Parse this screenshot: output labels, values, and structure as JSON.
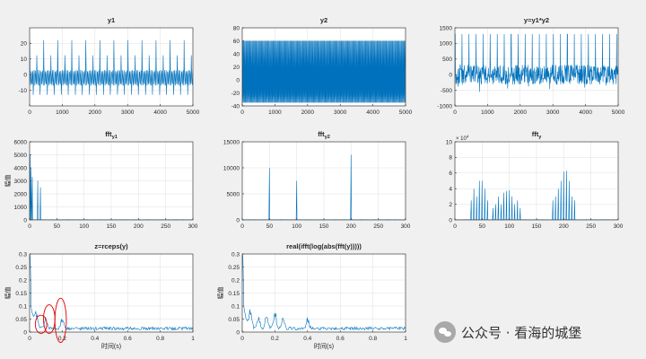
{
  "watermark": "公众号 · 看海的城堡",
  "colors": {
    "line": "#0072bd",
    "axes": "#262626",
    "grid": "#dfdfdf",
    "annotation": "#e00000"
  },
  "chart_data": [
    {
      "id": "y1",
      "type": "line",
      "title": "y1",
      "xlim": [
        0,
        5000
      ],
      "ylim": [
        -20,
        30
      ],
      "xticks": [
        0,
        1000,
        2000,
        3000,
        4000,
        5000
      ],
      "yticks": [
        -10,
        0,
        10,
        20
      ],
      "signal": {
        "period_x": 215,
        "peak_max": 22,
        "peak_min": -13,
        "secondary": 8
      }
    },
    {
      "id": "y2",
      "type": "line",
      "title": "y2",
      "xlim": [
        0,
        5000
      ],
      "ylim": [
        -40,
        80
      ],
      "xticks": [
        0,
        1000,
        2000,
        3000,
        4000,
        5000
      ],
      "yticks": [
        -40,
        -20,
        0,
        20,
        40,
        60,
        80
      ],
      "signal": {
        "upper": 60,
        "lower": -35,
        "dense_band": [
          -22,
          20
        ]
      }
    },
    {
      "id": "y",
      "type": "line",
      "title": "y=y1*y2",
      "xlim": [
        0,
        5000
      ],
      "ylim": [
        -1000,
        1500
      ],
      "xticks": [
        0,
        1000,
        2000,
        3000,
        4000,
        5000
      ],
      "yticks": [
        -1000,
        -500,
        0,
        500,
        1000,
        1500
      ],
      "signal": {
        "period_x": 215,
        "peak_max": 1300,
        "band": [
          -400,
          400
        ],
        "peak_min": -700
      }
    },
    {
      "id": "fft_y1",
      "type": "line",
      "title": "fft",
      "title_sub": "y1",
      "ylabel": "幅值",
      "xlim": [
        0,
        300
      ],
      "ylim": [
        0,
        6000
      ],
      "xticks": [
        0,
        50,
        100,
        150,
        200,
        250,
        300
      ],
      "yticks": [
        0,
        1000,
        2000,
        3000,
        4000,
        5000,
        6000
      ],
      "peaks": [
        [
          1,
          5000
        ],
        [
          3,
          4000
        ],
        [
          5,
          3300
        ],
        [
          15,
          3000
        ],
        [
          20,
          2500
        ]
      ]
    },
    {
      "id": "fft_y2",
      "type": "line",
      "title": "fft",
      "title_sub": "y2",
      "xlim": [
        0,
        300
      ],
      "ylim": [
        0,
        15000
      ],
      "xticks": [
        0,
        50,
        100,
        150,
        200,
        250,
        300
      ],
      "yticks": [
        0,
        5000,
        10000,
        15000
      ],
      "peaks": [
        [
          50,
          10000
        ],
        [
          100,
          7500
        ],
        [
          200,
          12500
        ]
      ]
    },
    {
      "id": "fft_y",
      "type": "line",
      "title": "fft",
      "title_sub": "y",
      "exponent_label": "× 10",
      "exponent_power": "4",
      "xlim": [
        0,
        300
      ],
      "ylim": [
        0,
        10
      ],
      "xticks": [
        0,
        50,
        100,
        150,
        200,
        250,
        300
      ],
      "yticks": [
        0,
        2,
        4,
        6,
        8,
        10
      ],
      "peaks": [
        [
          30,
          2.5
        ],
        [
          35,
          4
        ],
        [
          40,
          3
        ],
        [
          45,
          5
        ],
        [
          50,
          5
        ],
        [
          55,
          4
        ],
        [
          60,
          2.5
        ],
        [
          70,
          1.5
        ],
        [
          75,
          2
        ],
        [
          80,
          3
        ],
        [
          85,
          2
        ],
        [
          90,
          3.5
        ],
        [
          95,
          3.7
        ],
        [
          100,
          3.8
        ],
        [
          105,
          3
        ],
        [
          110,
          2
        ],
        [
          115,
          2.5
        ],
        [
          120,
          1.5
        ],
        [
          180,
          2.5
        ],
        [
          185,
          3
        ],
        [
          190,
          4
        ],
        [
          195,
          5
        ],
        [
          200,
          6.2
        ],
        [
          205,
          6.3
        ],
        [
          210,
          5
        ],
        [
          215,
          3
        ],
        [
          220,
          2.5
        ]
      ]
    },
    {
      "id": "rceps",
      "type": "line",
      "title": "z=rceps(y)",
      "ylabel": "幅值",
      "xlabel": "时间(s)",
      "xlim": [
        0,
        1
      ],
      "ylim": [
        0,
        0.3
      ],
      "xticks": [
        0,
        0.2,
        0.4,
        0.6,
        0.8,
        1
      ],
      "yticks": [
        0,
        0.05,
        0.1,
        0.15,
        0.2,
        0.25,
        0.3
      ],
      "bumps": [
        [
          0.04,
          0.055
        ],
        [
          0.1,
          0.04
        ],
        [
          0.2,
          0.045
        ]
      ],
      "annotations": [
        {
          "center": [
            0.07,
            0.03
          ],
          "radius_x": 0.035,
          "radius_y": 0.035
        },
        {
          "center": [
            0.12,
            0.05
          ],
          "radius_x": 0.035,
          "radius_y": 0.055
        },
        {
          "center": [
            0.19,
            0.045
          ],
          "radius_x": 0.035,
          "radius_y": 0.085
        }
      ]
    },
    {
      "id": "real_ifft",
      "type": "line",
      "title": "real(ifft(log(abs(fft(y)))))",
      "ylabel": "幅值",
      "xlabel": "时间(s)",
      "xlim": [
        0,
        1
      ],
      "ylim": [
        0,
        0.3
      ],
      "xticks": [
        0,
        0.2,
        0.4,
        0.6,
        0.8,
        1
      ],
      "yticks": [
        0,
        0.05,
        0.1,
        0.15,
        0.2,
        0.25,
        0.3
      ],
      "bumps": [
        [
          0.05,
          0.07
        ],
        [
          0.1,
          0.055
        ],
        [
          0.15,
          0.06
        ],
        [
          0.2,
          0.075
        ],
        [
          0.25,
          0.05
        ],
        [
          0.4,
          0.04
        ]
      ]
    }
  ]
}
